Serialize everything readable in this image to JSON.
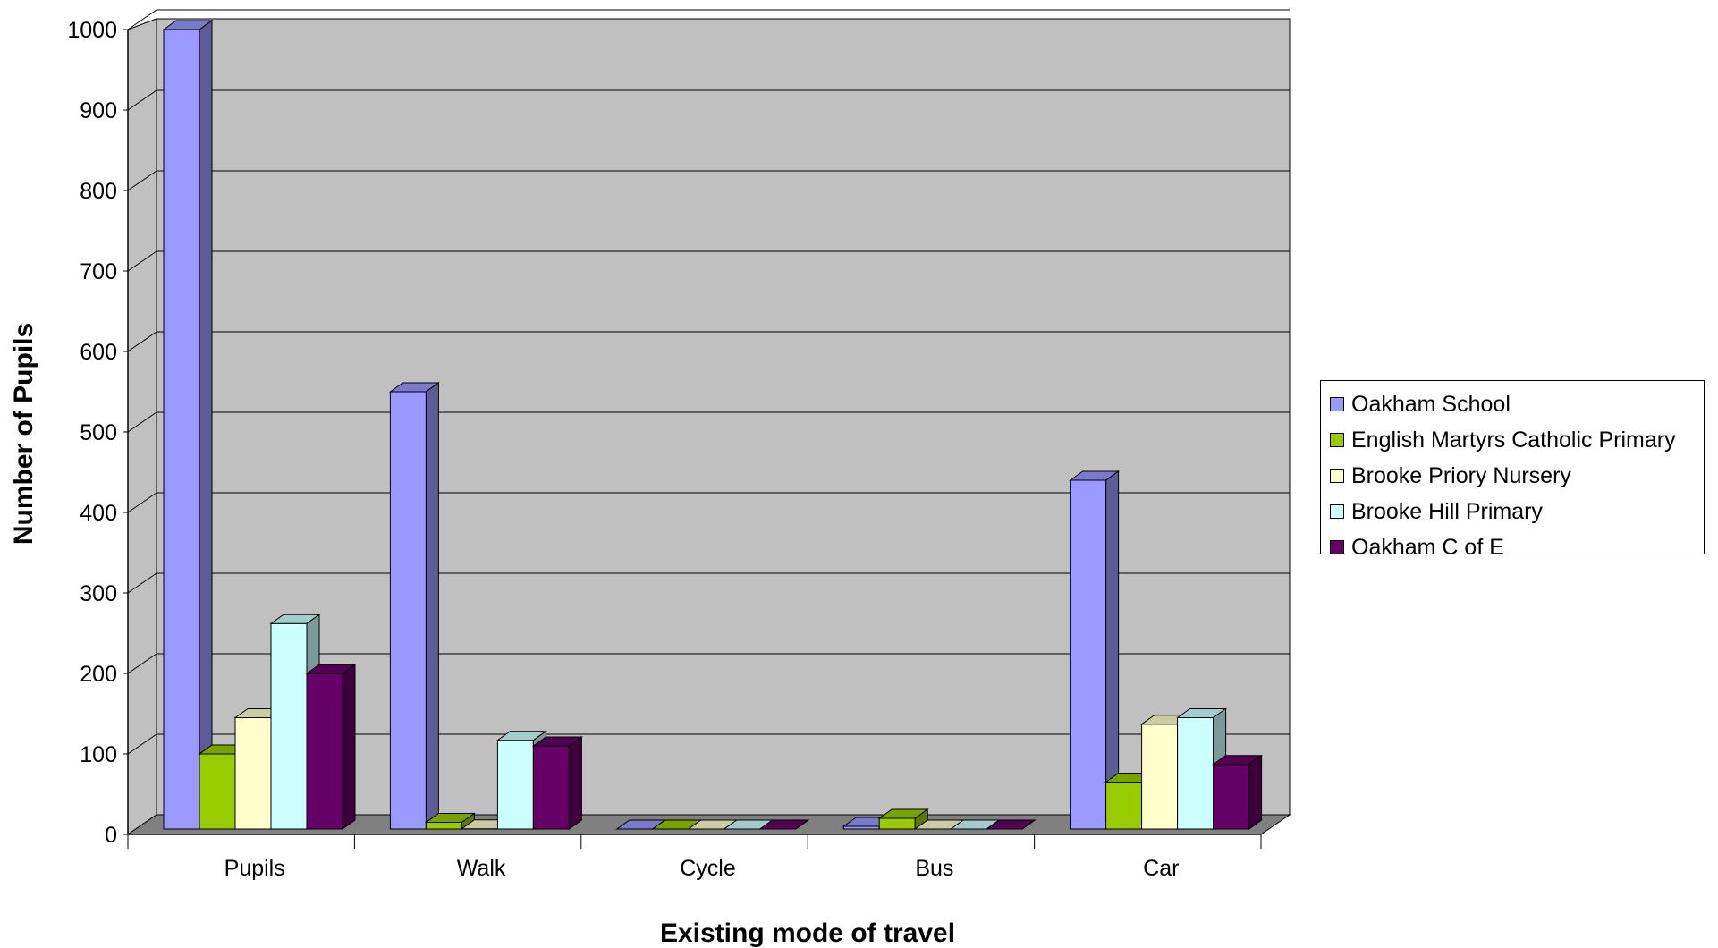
{
  "chart_data": {
    "type": "bar",
    "style": "3d-clustered-column",
    "xlabel": "Existing mode of travel",
    "ylabel": "Number of Pupils",
    "ylim": [
      0,
      1000
    ],
    "yticks": [
      "0",
      "100",
      "200",
      "300",
      "400",
      "500",
      "600",
      "700",
      "800",
      "900",
      "1000"
    ],
    "categories": [
      "Pupils",
      "Walk",
      "Cycle",
      "Bus",
      "Car"
    ],
    "grid": true,
    "legend_position": "right",
    "series": [
      {
        "name": "Oakham School",
        "color": "#9999ff",
        "values": [
          1000,
          550,
          0,
          10,
          440
        ]
      },
      {
        "name": "English Martyrs Catholic Primary",
        "color": "#99cc00",
        "values": [
          100,
          15,
          0,
          20,
          65
        ]
      },
      {
        "name": "Brooke Priory Nursery",
        "color": "#ffffcc",
        "values": [
          145,
          7,
          0,
          0,
          137
        ]
      },
      {
        "name": "Brooke Hill Primary",
        "color": "#ccffff",
        "values": [
          262,
          117,
          0,
          0,
          145
        ]
      },
      {
        "name": "Oakham C of E",
        "color": "#660066",
        "values": [
          200,
          110,
          0,
          0,
          87
        ]
      }
    ],
    "wall_color": "#c0c0c0",
    "floor_color": "#808080"
  }
}
